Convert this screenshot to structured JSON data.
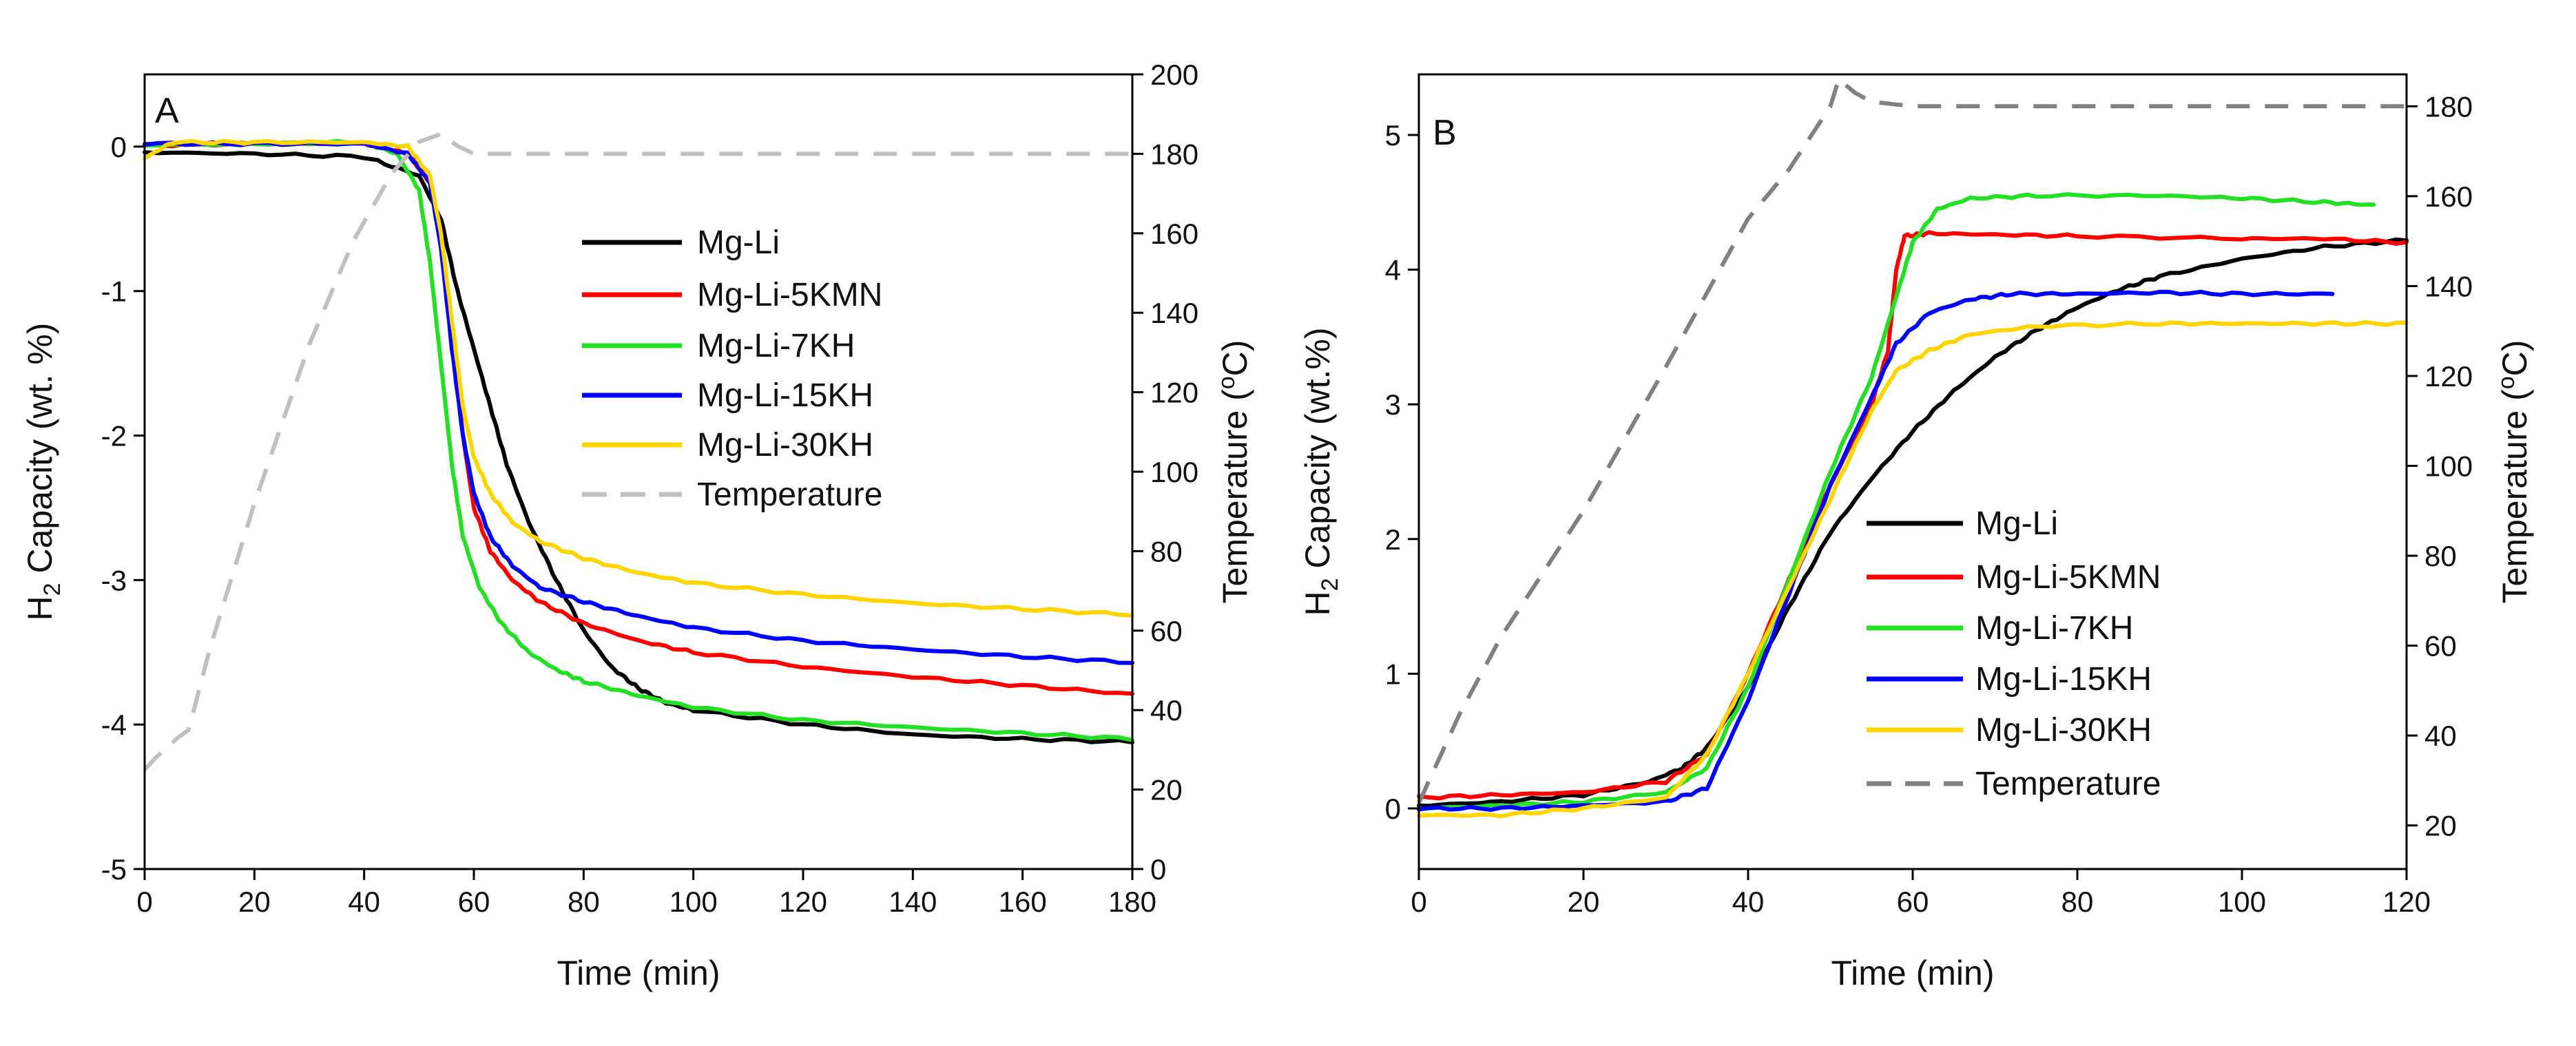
{
  "chart_data": [
    {
      "panel": "A",
      "type": "line",
      "xlabel": "Time (min)",
      "ylabel": "H2 Capacity (wt. %)",
      "ylabel_right": "Temperature (oC)",
      "xlim": [
        0,
        180
      ],
      "ylim": [
        -5,
        0.5
      ],
      "ylim_right": [
        0,
        200
      ],
      "xticks": [
        0,
        20,
        40,
        60,
        80,
        100,
        120,
        140,
        160,
        180
      ],
      "yticks": [
        -5,
        -4,
        -3,
        -2,
        -1,
        0
      ],
      "yticks_right": [
        0,
        20,
        40,
        60,
        80,
        100,
        120,
        140,
        160,
        180,
        200
      ],
      "legend_position": "center-right",
      "series": [
        {
          "name": "Mg-Li",
          "color": "#000000",
          "axis": "left",
          "dashed": false,
          "points": [
            [
              0,
              -0.04
            ],
            [
              20,
              -0.05
            ],
            [
              40,
              -0.07
            ],
            [
              50,
              -0.2
            ],
            [
              54,
              -0.5
            ],
            [
              57,
              -1.0
            ],
            [
              60,
              -1.4
            ],
            [
              63,
              -1.8
            ],
            [
              66,
              -2.2
            ],
            [
              70,
              -2.6
            ],
            [
              75,
              -3.0
            ],
            [
              80,
              -3.35
            ],
            [
              85,
              -3.6
            ],
            [
              90,
              -3.75
            ],
            [
              95,
              -3.85
            ],
            [
              100,
              -3.9
            ],
            [
              120,
              -4.0
            ],
            [
              140,
              -4.07
            ],
            [
              160,
              -4.1
            ],
            [
              180,
              -4.12
            ]
          ]
        },
        {
          "name": "Mg-Li-5KMN",
          "color": "#ff0000",
          "axis": "left",
          "dashed": false,
          "points": [
            [
              0,
              0.01
            ],
            [
              20,
              0.02
            ],
            [
              40,
              0.02
            ],
            [
              48,
              -0.05
            ],
            [
              52,
              -0.25
            ],
            [
              54,
              -0.6
            ],
            [
              56,
              -1.3
            ],
            [
              58,
              -2.0
            ],
            [
              60,
              -2.5
            ],
            [
              63,
              -2.8
            ],
            [
              67,
              -3.0
            ],
            [
              72,
              -3.15
            ],
            [
              80,
              -3.3
            ],
            [
              90,
              -3.42
            ],
            [
              100,
              -3.5
            ],
            [
              120,
              -3.6
            ],
            [
              140,
              -3.67
            ],
            [
              160,
              -3.73
            ],
            [
              180,
              -3.79
            ]
          ]
        },
        {
          "name": "Mg-Li-7KH",
          "color": "#22e022",
          "axis": "left",
          "dashed": false,
          "points": [
            [
              0,
              0.01
            ],
            [
              20,
              0.02
            ],
            [
              40,
              0.03
            ],
            [
              46,
              -0.05
            ],
            [
              50,
              -0.3
            ],
            [
              52,
              -0.8
            ],
            [
              54,
              -1.5
            ],
            [
              56,
              -2.2
            ],
            [
              58,
              -2.7
            ],
            [
              61,
              -3.05
            ],
            [
              65,
              -3.3
            ],
            [
              70,
              -3.5
            ],
            [
              75,
              -3.62
            ],
            [
              80,
              -3.7
            ],
            [
              90,
              -3.8
            ],
            [
              100,
              -3.88
            ],
            [
              120,
              -3.97
            ],
            [
              140,
              -4.02
            ],
            [
              160,
              -4.06
            ],
            [
              180,
              -4.1
            ]
          ]
        },
        {
          "name": "Mg-Li-15KH",
          "color": "#0000ff",
          "axis": "left",
          "dashed": false,
          "points": [
            [
              0,
              0.02
            ],
            [
              20,
              0.02
            ],
            [
              40,
              0.02
            ],
            [
              48,
              -0.05
            ],
            [
              52,
              -0.25
            ],
            [
              54,
              -0.7
            ],
            [
              56,
              -1.4
            ],
            [
              58,
              -2.0
            ],
            [
              60,
              -2.4
            ],
            [
              63,
              -2.7
            ],
            [
              67,
              -2.9
            ],
            [
              72,
              -3.05
            ],
            [
              80,
              -3.15
            ],
            [
              90,
              -3.25
            ],
            [
              100,
              -3.33
            ],
            [
              120,
              -3.42
            ],
            [
              140,
              -3.48
            ],
            [
              160,
              -3.53
            ],
            [
              180,
              -3.57
            ]
          ]
        },
        {
          "name": "Mg-Li-30KH",
          "color": "#ffd500",
          "axis": "left",
          "dashed": false,
          "points": [
            [
              0,
              -0.08
            ],
            [
              5,
              0.03
            ],
            [
              20,
              0.03
            ],
            [
              40,
              0.03
            ],
            [
              48,
              0.0
            ],
            [
              52,
              -0.2
            ],
            [
              54,
              -0.6
            ],
            [
              56,
              -1.2
            ],
            [
              58,
              -1.8
            ],
            [
              60,
              -2.15
            ],
            [
              63,
              -2.4
            ],
            [
              67,
              -2.6
            ],
            [
              72,
              -2.73
            ],
            [
              80,
              -2.85
            ],
            [
              90,
              -2.95
            ],
            [
              100,
              -3.02
            ],
            [
              120,
              -3.1
            ],
            [
              140,
              -3.16
            ],
            [
              160,
              -3.2
            ],
            [
              180,
              -3.24
            ]
          ]
        },
        {
          "name": "Temperature",
          "color": "#c0c0c0",
          "axis": "right",
          "dashed": true,
          "points": [
            [
              0,
              25
            ],
            [
              2,
              28
            ],
            [
              6,
              33
            ],
            [
              8,
              35
            ],
            [
              12,
              56
            ],
            [
              20,
              92
            ],
            [
              30,
              132
            ],
            [
              38,
              158
            ],
            [
              45,
              175
            ],
            [
              50,
              183
            ],
            [
              54,
              185
            ],
            [
              57,
              182
            ],
            [
              60,
              180
            ],
            [
              80,
              180
            ],
            [
              120,
              180
            ],
            [
              180,
              180
            ]
          ]
        }
      ]
    },
    {
      "panel": "B",
      "type": "line",
      "xlabel": "Time (min)",
      "ylabel": "H2 Capacity (wt.%)",
      "ylabel_right": "Temperature (oC)",
      "xlim": [
        0,
        120
      ],
      "ylim": [
        -0.45,
        5.45
      ],
      "ylim_right": [
        10.3,
        187.1
      ],
      "xticks": [
        0,
        20,
        40,
        60,
        80,
        100,
        120
      ],
      "yticks": [
        0,
        1,
        2,
        3,
        4,
        5
      ],
      "yticks_right": [
        20,
        40,
        60,
        80,
        100,
        120,
        140,
        160,
        180
      ],
      "legend_position": "bottom-right",
      "series": [
        {
          "name": "Mg-Li",
          "color": "#000000",
          "axis": "left",
          "dashed": false,
          "points": [
            [
              0,
              0.02
            ],
            [
              10,
              0.05
            ],
            [
              20,
              0.1
            ],
            [
              28,
              0.2
            ],
            [
              32,
              0.3
            ],
            [
              35,
              0.45
            ],
            [
              40,
              0.9
            ],
            [
              45,
              1.5
            ],
            [
              50,
              2.05
            ],
            [
              55,
              2.45
            ],
            [
              60,
              2.8
            ],
            [
              65,
              3.1
            ],
            [
              70,
              3.35
            ],
            [
              75,
              3.55
            ],
            [
              80,
              3.72
            ],
            [
              85,
              3.85
            ],
            [
              90,
              3.95
            ],
            [
              100,
              4.08
            ],
            [
              110,
              4.17
            ],
            [
              120,
              4.22
            ]
          ]
        },
        {
          "name": "Mg-Li-5KMN",
          "color": "#ff0000",
          "axis": "left",
          "dashed": false,
          "points": [
            [
              0,
              0.08
            ],
            [
              10,
              0.1
            ],
            [
              20,
              0.12
            ],
            [
              30,
              0.2
            ],
            [
              35,
              0.4
            ],
            [
              40,
              1.0
            ],
            [
              45,
              1.7
            ],
            [
              50,
              2.4
            ],
            [
              55,
              3.0
            ],
            [
              57,
              3.4
            ],
            [
              58,
              4.0
            ],
            [
              59,
              4.25
            ],
            [
              62,
              4.27
            ],
            [
              70,
              4.26
            ],
            [
              80,
              4.25
            ],
            [
              100,
              4.23
            ],
            [
              110,
              4.23
            ],
            [
              120,
              4.2
            ]
          ]
        },
        {
          "name": "Mg-Li-7KH",
          "color": "#22e022",
          "axis": "left",
          "dashed": false,
          "points": [
            [
              0,
              0.0
            ],
            [
              10,
              0.02
            ],
            [
              20,
              0.05
            ],
            [
              30,
              0.12
            ],
            [
              35,
              0.3
            ],
            [
              40,
              0.9
            ],
            [
              45,
              1.7
            ],
            [
              50,
              2.5
            ],
            [
              55,
              3.2
            ],
            [
              58,
              3.8
            ],
            [
              60,
              4.2
            ],
            [
              63,
              4.45
            ],
            [
              67,
              4.53
            ],
            [
              75,
              4.55
            ],
            [
              90,
              4.55
            ],
            [
              100,
              4.53
            ],
            [
              110,
              4.5
            ],
            [
              116,
              4.48
            ]
          ]
        },
        {
          "name": "Mg-Li-15KH",
          "color": "#0000ff",
          "axis": "left",
          "dashed": false,
          "points": [
            [
              0,
              0.0
            ],
            [
              10,
              0.0
            ],
            [
              20,
              0.02
            ],
            [
              30,
              0.05
            ],
            [
              35,
              0.15
            ],
            [
              40,
              0.8
            ],
            [
              45,
              1.6
            ],
            [
              50,
              2.4
            ],
            [
              55,
              3.05
            ],
            [
              58,
              3.45
            ],
            [
              62,
              3.68
            ],
            [
              67,
              3.78
            ],
            [
              72,
              3.82
            ],
            [
              80,
              3.82
            ],
            [
              90,
              3.83
            ],
            [
              100,
              3.82
            ],
            [
              111,
              3.82
            ]
          ]
        },
        {
          "name": "Mg-Li-30KH",
          "color": "#ffd500",
          "axis": "left",
          "dashed": false,
          "points": [
            [
              0,
              -0.05
            ],
            [
              10,
              -0.05
            ],
            [
              20,
              0.0
            ],
            [
              30,
              0.08
            ],
            [
              35,
              0.4
            ],
            [
              40,
              1.0
            ],
            [
              45,
              1.65
            ],
            [
              50,
              2.3
            ],
            [
              55,
              2.95
            ],
            [
              58,
              3.25
            ],
            [
              62,
              3.4
            ],
            [
              67,
              3.52
            ],
            [
              75,
              3.58
            ],
            [
              90,
              3.6
            ],
            [
              100,
              3.6
            ],
            [
              110,
              3.6
            ],
            [
              120,
              3.6
            ]
          ]
        },
        {
          "name": "Temperature",
          "color": "#808080",
          "axis": "right",
          "dashed": true,
          "points": [
            [
              0,
              25
            ],
            [
              2,
              33
            ],
            [
              5,
              45
            ],
            [
              10,
              62
            ],
            [
              20,
              90
            ],
            [
              30,
              122
            ],
            [
              40,
              155
            ],
            [
              45,
              166
            ],
            [
              50,
              180
            ],
            [
              51,
              186
            ],
            [
              53,
              183
            ],
            [
              55,
              181
            ],
            [
              60,
              180
            ],
            [
              80,
              180
            ],
            [
              100,
              180
            ],
            [
              120,
              180
            ]
          ]
        }
      ]
    }
  ],
  "panels": [
    {
      "letter": "A",
      "xlabel": "Time (min)",
      "ylabel_main": "H",
      "ylabel_sub": "2",
      "ylabel_rest": " Capacity (wt. %)",
      "y2label_main": "Temperature (",
      "y2label_sup": "o",
      "y2label_rest": "C)",
      "xtick_labels": [
        "0",
        "20",
        "40",
        "60",
        "80",
        "100",
        "120",
        "140",
        "160",
        "180"
      ],
      "ytick_labels": [
        "-5",
        "-4",
        "-3",
        "-2",
        "-1",
        "0"
      ],
      "y2tick_labels": [
        "0",
        "20",
        "40",
        "60",
        "80",
        "100",
        "120",
        "140",
        "160",
        "180",
        "200"
      ],
      "legend": [
        "Mg-Li",
        "Mg-Li-5KMN",
        "Mg-Li-7KH",
        "Mg-Li-15KH",
        "Mg-Li-30KH",
        "Temperature"
      ]
    },
    {
      "letter": "B",
      "xlabel": "Time (min)",
      "ylabel_main": "H",
      "ylabel_sub": "2",
      "ylabel_rest": " Capacity (wt.%)",
      "y2label_main": "Temperature (",
      "y2label_sup": "o",
      "y2label_rest": "C)",
      "xtick_labels": [
        "0",
        "20",
        "40",
        "60",
        "80",
        "100",
        "120"
      ],
      "ytick_labels": [
        "0",
        "1",
        "2",
        "3",
        "4",
        "5"
      ],
      "y2tick_labels": [
        "20",
        "40",
        "60",
        "80",
        "100",
        "120",
        "140",
        "160",
        "180"
      ],
      "legend": [
        "Mg-Li",
        "Mg-Li-5KMN",
        "Mg-Li-7KH",
        "Mg-Li-15KH",
        "Mg-Li-30KH",
        "Temperature"
      ]
    }
  ]
}
